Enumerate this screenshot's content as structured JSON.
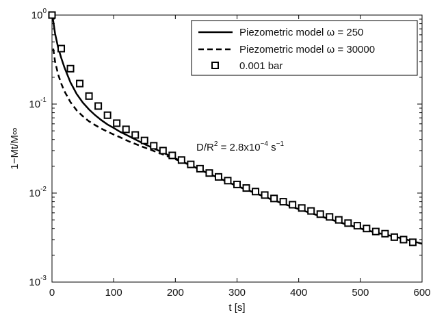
{
  "chart_data": {
    "type": "line",
    "title": "",
    "xlabel": "t [s]",
    "ylabel": "1−Mt/M∞",
    "xlim": [
      0,
      600
    ],
    "ylim": [
      0.001,
      1
    ],
    "yscale": "log",
    "grid": false,
    "legend_position": "top-right",
    "x_ticks": [
      "0",
      "100",
      "200",
      "300",
      "400",
      "500",
      "600"
    ],
    "y_ticks": [
      {
        "base": "10",
        "exp": "0"
      },
      {
        "base": "10",
        "exp": "-1"
      },
      {
        "base": "10",
        "exp": "-2"
      },
      {
        "base": "10",
        "exp": "-3"
      }
    ],
    "annotation": {
      "prefix": "D/R",
      "prefix_sup": "2",
      "middle": " = 2.8x10",
      "middle_sup": "−4",
      "unit": " s",
      "unit_sup": "−1"
    },
    "series": [
      {
        "name": "Piezometric model ω = 250",
        "style": "solid",
        "color": "#000000",
        "x": [
          0,
          2,
          5,
          10,
          15,
          20,
          30,
          40,
          50,
          60,
          70,
          80,
          90,
          100,
          110,
          125,
          150,
          175,
          200,
          225,
          250,
          275,
          300,
          325,
          350,
          375,
          400,
          425,
          450,
          475,
          500,
          525,
          550,
          575,
          600
        ],
        "y": [
          1.0,
          0.86,
          0.62,
          0.43,
          0.33,
          0.26,
          0.175,
          0.13,
          0.104,
          0.087,
          0.075,
          0.066,
          0.059,
          0.054,
          0.049,
          0.0435,
          0.0355,
          0.0295,
          0.0245,
          0.0205,
          0.017,
          0.0143,
          0.012,
          0.0103,
          0.0088,
          0.0076,
          0.0066,
          0.0058,
          0.0051,
          0.0045,
          0.004,
          0.0036,
          0.0033,
          0.003,
          0.0027
        ]
      },
      {
        "name": "Piezometric model ω = 30000",
        "style": "dashed",
        "color": "#000000",
        "x": [
          2,
          5,
          10,
          15,
          20,
          30,
          40,
          50,
          60,
          70,
          80,
          90,
          100,
          110,
          125,
          150,
          175,
          200,
          225,
          250,
          275,
          300,
          325,
          350,
          375,
          400,
          425,
          450,
          475,
          500,
          525,
          550,
          575,
          600
        ],
        "y": [
          0.42,
          0.3,
          0.215,
          0.17,
          0.14,
          0.105,
          0.085,
          0.073,
          0.064,
          0.058,
          0.053,
          0.049,
          0.0455,
          0.0425,
          0.038,
          0.0325,
          0.028,
          0.024,
          0.0205,
          0.017,
          0.0143,
          0.012,
          0.0103,
          0.0088,
          0.0076,
          0.0066,
          0.0058,
          0.0051,
          0.0045,
          0.004,
          0.0036,
          0.0033,
          0.003,
          0.0027
        ]
      },
      {
        "name": "0.001 bar",
        "style": "markers",
        "marker": "square",
        "color": "#000000",
        "x": [
          0,
          15,
          30,
          45,
          60,
          75,
          90,
          105,
          120,
          135,
          150,
          165,
          180,
          195,
          210,
          225,
          240,
          255,
          270,
          285,
          300,
          315,
          330,
          345,
          360,
          375,
          390,
          405,
          420,
          435,
          450,
          465,
          480,
          495,
          510,
          525,
          540,
          555,
          570,
          585
        ],
        "y": [
          1.0,
          0.42,
          0.25,
          0.17,
          0.123,
          0.095,
          0.075,
          0.061,
          0.052,
          0.045,
          0.039,
          0.034,
          0.03,
          0.0265,
          0.0235,
          0.021,
          0.0188,
          0.0168,
          0.0152,
          0.0138,
          0.0125,
          0.0114,
          0.0104,
          0.0095,
          0.0087,
          0.008,
          0.0074,
          0.0068,
          0.0063,
          0.0058,
          0.0054,
          0.005,
          0.0046,
          0.0043,
          0.004,
          0.0037,
          0.0035,
          0.0032,
          0.003,
          0.0028
        ]
      }
    ]
  }
}
